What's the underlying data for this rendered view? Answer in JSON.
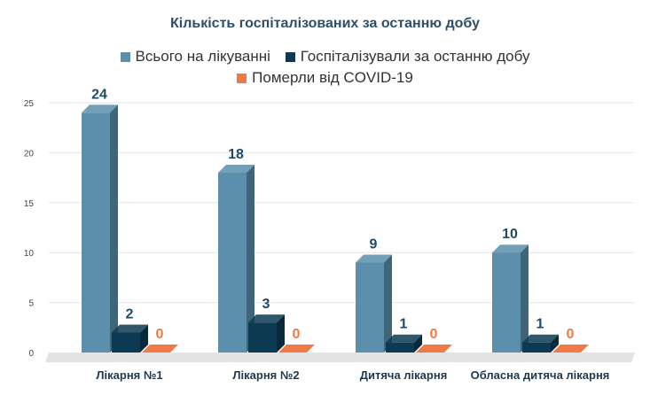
{
  "chart_data": {
    "type": "bar",
    "title": "Кількість госпіталізованих за останню добу",
    "categories": [
      "Лікарня №1",
      "Лікарня №2",
      "Дитяча лікарня",
      "Обласна дитяча лікарня"
    ],
    "series": [
      {
        "name": "Всього на лікуванні",
        "values": [
          24,
          18,
          9,
          10
        ],
        "color": "#5b8fab",
        "label_color": "#1f4a66"
      },
      {
        "name": "Госпіталізували за останню добу",
        "values": [
          2,
          3,
          1,
          1
        ],
        "color": "#0d3a53",
        "label_color": "#1f4a66"
      },
      {
        "name": "Померли від COVID-19",
        "values": [
          0,
          0,
          0,
          0
        ],
        "color": "#f07a45",
        "label_color": "#f07a45"
      }
    ],
    "yticks": [
      0,
      5,
      10,
      15,
      20,
      25
    ],
    "ylim": [
      0,
      25
    ],
    "grid": true,
    "legend_position": "top-center"
  }
}
